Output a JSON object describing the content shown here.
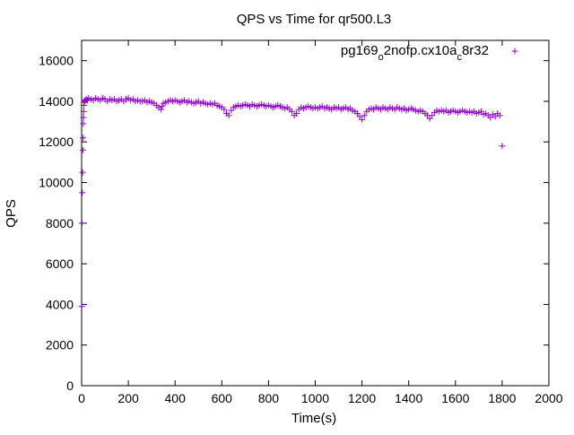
{
  "chart_data": {
    "type": "scatter",
    "title": "QPS vs Time for qr500.L3",
    "xlabel": "Time(s)",
    "ylabel": "QPS",
    "xlim": [
      0,
      2000
    ],
    "ylim": [
      0,
      17000
    ],
    "xticks": [
      0,
      200,
      400,
      600,
      800,
      1000,
      1200,
      1400,
      1600,
      1800,
      2000
    ],
    "yticks": [
      0,
      2000,
      4000,
      6000,
      8000,
      10000,
      12000,
      14000,
      16000
    ],
    "grid": false,
    "legend_position": "top-right",
    "marker": "plus",
    "series": [
      {
        "name": "pg169_o2nofp.cx10a_c8r32",
        "legend_parts": [
          {
            "text": "pg169",
            "sub": false
          },
          {
            "text": "o",
            "sub": true
          },
          {
            "text": "2nofp.cx10a",
            "sub": false
          },
          {
            "text": "c",
            "sub": true
          },
          {
            "text": "8r32",
            "sub": false
          }
        ],
        "color": "#9400d3",
        "points": [
          [
            1,
            3900
          ],
          [
            2,
            8000
          ],
          [
            3,
            9500
          ],
          [
            4,
            10500
          ],
          [
            5,
            11600
          ],
          [
            6,
            12200
          ],
          [
            7,
            12900
          ],
          [
            8,
            13200
          ],
          [
            9,
            13500
          ],
          [
            10,
            13800
          ],
          [
            11,
            13950
          ],
          [
            12,
            14000
          ],
          [
            15,
            14050
          ],
          [
            20,
            14100
          ],
          [
            25,
            14050
          ],
          [
            30,
            14150
          ],
          [
            40,
            14100
          ],
          [
            50,
            14050
          ],
          [
            60,
            14150
          ],
          [
            70,
            14100
          ],
          [
            80,
            14050
          ],
          [
            90,
            14150
          ],
          [
            100,
            14100
          ],
          [
            110,
            14000
          ],
          [
            120,
            14100
          ],
          [
            130,
            14050
          ],
          [
            140,
            14100
          ],
          [
            150,
            14000
          ],
          [
            160,
            14050
          ],
          [
            170,
            14100
          ],
          [
            180,
            14000
          ],
          [
            190,
            14100
          ],
          [
            200,
            14150
          ],
          [
            210,
            14050
          ],
          [
            220,
            14100
          ],
          [
            230,
            14000
          ],
          [
            240,
            14050
          ],
          [
            250,
            14000
          ],
          [
            260,
            14000
          ],
          [
            270,
            14050
          ],
          [
            280,
            13950
          ],
          [
            290,
            14000
          ],
          [
            300,
            13950
          ],
          [
            310,
            13900
          ],
          [
            320,
            13800
          ],
          [
            330,
            13700
          ],
          [
            340,
            13600
          ],
          [
            345,
            13750
          ],
          [
            350,
            13900
          ],
          [
            360,
            13950
          ],
          [
            370,
            14000
          ],
          [
            380,
            14050
          ],
          [
            390,
            14000
          ],
          [
            400,
            14050
          ],
          [
            410,
            14000
          ],
          [
            420,
            13950
          ],
          [
            430,
            14000
          ],
          [
            440,
            14050
          ],
          [
            450,
            13950
          ],
          [
            460,
            14000
          ],
          [
            470,
            13950
          ],
          [
            480,
            13900
          ],
          [
            490,
            13950
          ],
          [
            500,
            14000
          ],
          [
            510,
            13900
          ],
          [
            520,
            13950
          ],
          [
            530,
            13900
          ],
          [
            540,
            13850
          ],
          [
            550,
            13900
          ],
          [
            560,
            13850
          ],
          [
            570,
            13900
          ],
          [
            580,
            13800
          ],
          [
            590,
            13750
          ],
          [
            600,
            13700
          ],
          [
            610,
            13600
          ],
          [
            620,
            13400
          ],
          [
            630,
            13300
          ],
          [
            640,
            13550
          ],
          [
            650,
            13700
          ],
          [
            660,
            13750
          ],
          [
            670,
            13800
          ],
          [
            680,
            13750
          ],
          [
            690,
            13800
          ],
          [
            700,
            13850
          ],
          [
            710,
            13800
          ],
          [
            720,
            13750
          ],
          [
            730,
            13850
          ],
          [
            740,
            13800
          ],
          [
            750,
            13750
          ],
          [
            760,
            13800
          ],
          [
            770,
            13850
          ],
          [
            780,
            13800
          ],
          [
            790,
            13750
          ],
          [
            800,
            13800
          ],
          [
            810,
            13750
          ],
          [
            820,
            13700
          ],
          [
            830,
            13750
          ],
          [
            840,
            13800
          ],
          [
            850,
            13750
          ],
          [
            860,
            13700
          ],
          [
            870,
            13650
          ],
          [
            880,
            13700
          ],
          [
            890,
            13600
          ],
          [
            900,
            13500
          ],
          [
            910,
            13300
          ],
          [
            920,
            13400
          ],
          [
            930,
            13600
          ],
          [
            940,
            13700
          ],
          [
            950,
            13650
          ],
          [
            960,
            13700
          ],
          [
            970,
            13750
          ],
          [
            980,
            13700
          ],
          [
            990,
            13650
          ],
          [
            1000,
            13700
          ],
          [
            1010,
            13650
          ],
          [
            1020,
            13700
          ],
          [
            1030,
            13750
          ],
          [
            1040,
            13650
          ],
          [
            1050,
            13700
          ],
          [
            1060,
            13650
          ],
          [
            1070,
            13600
          ],
          [
            1080,
            13700
          ],
          [
            1090,
            13650
          ],
          [
            1100,
            13700
          ],
          [
            1110,
            13600
          ],
          [
            1120,
            13650
          ],
          [
            1130,
            13700
          ],
          [
            1140,
            13600
          ],
          [
            1150,
            13650
          ],
          [
            1160,
            13550
          ],
          [
            1170,
            13500
          ],
          [
            1180,
            13400
          ],
          [
            1190,
            13250
          ],
          [
            1200,
            13100
          ],
          [
            1210,
            13300
          ],
          [
            1220,
            13500
          ],
          [
            1230,
            13600
          ],
          [
            1240,
            13650
          ],
          [
            1250,
            13600
          ],
          [
            1260,
            13700
          ],
          [
            1270,
            13650
          ],
          [
            1280,
            13600
          ],
          [
            1290,
            13700
          ],
          [
            1300,
            13650
          ],
          [
            1310,
            13600
          ],
          [
            1320,
            13700
          ],
          [
            1330,
            13650
          ],
          [
            1340,
            13600
          ],
          [
            1350,
            13700
          ],
          [
            1360,
            13650
          ],
          [
            1370,
            13600
          ],
          [
            1380,
            13650
          ],
          [
            1390,
            13550
          ],
          [
            1400,
            13600
          ],
          [
            1410,
            13650
          ],
          [
            1420,
            13600
          ],
          [
            1430,
            13550
          ],
          [
            1440,
            13500
          ],
          [
            1450,
            13550
          ],
          [
            1460,
            13500
          ],
          [
            1470,
            13400
          ],
          [
            1480,
            13300
          ],
          [
            1490,
            13150
          ],
          [
            1500,
            13300
          ],
          [
            1510,
            13450
          ],
          [
            1520,
            13550
          ],
          [
            1530,
            13500
          ],
          [
            1540,
            13550
          ],
          [
            1550,
            13500
          ],
          [
            1560,
            13550
          ],
          [
            1570,
            13450
          ],
          [
            1580,
            13500
          ],
          [
            1590,
            13550
          ],
          [
            1600,
            13500
          ],
          [
            1610,
            13450
          ],
          [
            1620,
            13500
          ],
          [
            1630,
            13550
          ],
          [
            1640,
            13500
          ],
          [
            1650,
            13450
          ],
          [
            1660,
            13500
          ],
          [
            1670,
            13450
          ],
          [
            1680,
            13500
          ],
          [
            1690,
            13400
          ],
          [
            1700,
            13450
          ],
          [
            1710,
            13500
          ],
          [
            1720,
            13350
          ],
          [
            1730,
            13400
          ],
          [
            1740,
            13300
          ],
          [
            1750,
            13200
          ],
          [
            1760,
            13350
          ],
          [
            1770,
            13250
          ],
          [
            1780,
            13400
          ],
          [
            1790,
            13300
          ],
          [
            1800,
            11800
          ]
        ]
      }
    ]
  }
}
